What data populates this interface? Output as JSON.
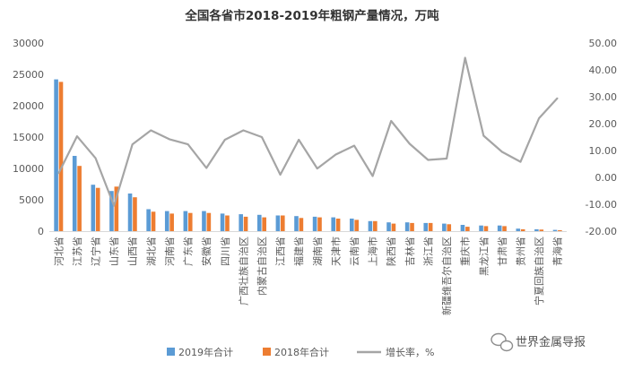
{
  "chart_data": {
    "type": "bar",
    "title": "全国各省市2018-2019年粗钢产量情况，万吨",
    "categories": [
      "河北省",
      "江苏省",
      "辽宁省",
      "山东省",
      "山西省",
      "湖北省",
      "河南省",
      "广东省",
      "安徽省",
      "四川省",
      "广西壮族自治区",
      "内蒙古自治区",
      "江西省",
      "福建省",
      "湖南省",
      "天津市",
      "云南省",
      "上海市",
      "陕西省",
      "吉林省",
      "浙江省",
      "新疆维吾尔自治区",
      "重庆市",
      "黑龙江省",
      "甘肃省",
      "贵州省",
      "宁夏回族自治区",
      "青海省"
    ],
    "series": [
      {
        "name": "2019年合计",
        "axis": "left",
        "kind": "bar",
        "color": "#5b9bd5",
        "values": [
          24200,
          12000,
          7400,
          6400,
          6000,
          3500,
          3200,
          3200,
          3200,
          2800,
          2700,
          2600,
          2500,
          2400,
          2300,
          2200,
          2000,
          1600,
          1400,
          1400,
          1300,
          1200,
          1000,
          900,
          900,
          400,
          300,
          200
        ]
      },
      {
        "name": "2018年合计",
        "axis": "left",
        "kind": "bar",
        "color": "#ed7d31",
        "values": [
          23800,
          10400,
          6900,
          7100,
          5400,
          3100,
          2800,
          2900,
          2900,
          2500,
          2300,
          2200,
          2500,
          2100,
          2200,
          2000,
          1800,
          1600,
          1200,
          1300,
          1300,
          1100,
          700,
          800,
          800,
          300,
          250,
          150
        ]
      },
      {
        "name": "增长率，%",
        "axis": "right",
        "kind": "line",
        "color": "#a5a5a5",
        "values": [
          1.5,
          15.3,
          7.2,
          -10.5,
          12.3,
          17.5,
          14.2,
          12.3,
          3.5,
          14.0,
          17.5,
          15.0,
          1.0,
          14.0,
          3.3,
          8.5,
          11.8,
          0.5,
          21.0,
          12.5,
          6.5,
          7.0,
          44.5,
          15.5,
          9.5,
          5.8,
          22.0,
          29.5
        ]
      }
    ],
    "y_left": {
      "min": 0,
      "max": 30000,
      "ticks": [
        "0",
        "5000",
        "10000",
        "15000",
        "20000",
        "25000",
        "30000"
      ]
    },
    "y_right": {
      "min": -20,
      "max": 50,
      "ticks": [
        "-20.00",
        "-10.00",
        "0.00",
        "10.00",
        "20.00",
        "30.00",
        "40.00",
        "50.00"
      ]
    },
    "legend_position": "bottom",
    "grid": false
  },
  "watermark": {
    "text": "世界金属导报"
  }
}
